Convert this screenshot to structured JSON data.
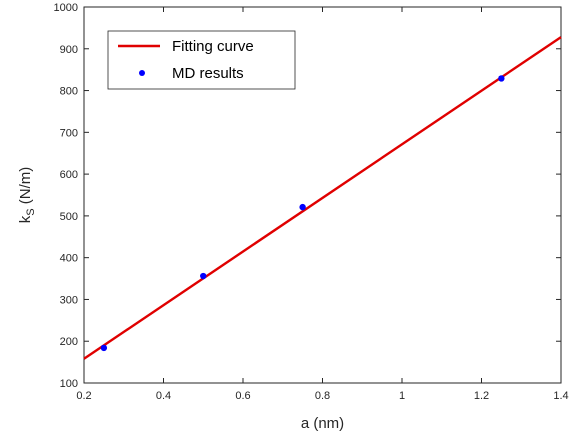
{
  "chart_data": {
    "type": "line",
    "xlabel": "a (nm)",
    "ylabel_main": "k",
    "ylabel_sub": "S",
    "ylabel_unit": " (N/m)",
    "xlim": [
      0.2,
      1.4
    ],
    "ylim": [
      100,
      1000
    ],
    "x_ticks": [
      0.2,
      0.4,
      0.6,
      0.8,
      1,
      1.2,
      1.4
    ],
    "y_ticks": [
      100,
      200,
      300,
      400,
      500,
      600,
      700,
      800,
      900,
      1000
    ],
    "grid": false,
    "legend_position": "top-left",
    "series": [
      {
        "name": "Fitting curve",
        "kind": "line",
        "color": "#e00000",
        "x": [
          0.2,
          1.4
        ],
        "y": [
          158,
          928
        ]
      },
      {
        "name": "MD results",
        "kind": "scatter",
        "color": "#0000ff",
        "x": [
          0.25,
          0.5,
          0.75,
          1.25
        ],
        "y": [
          184,
          356,
          521,
          829
        ]
      }
    ]
  }
}
